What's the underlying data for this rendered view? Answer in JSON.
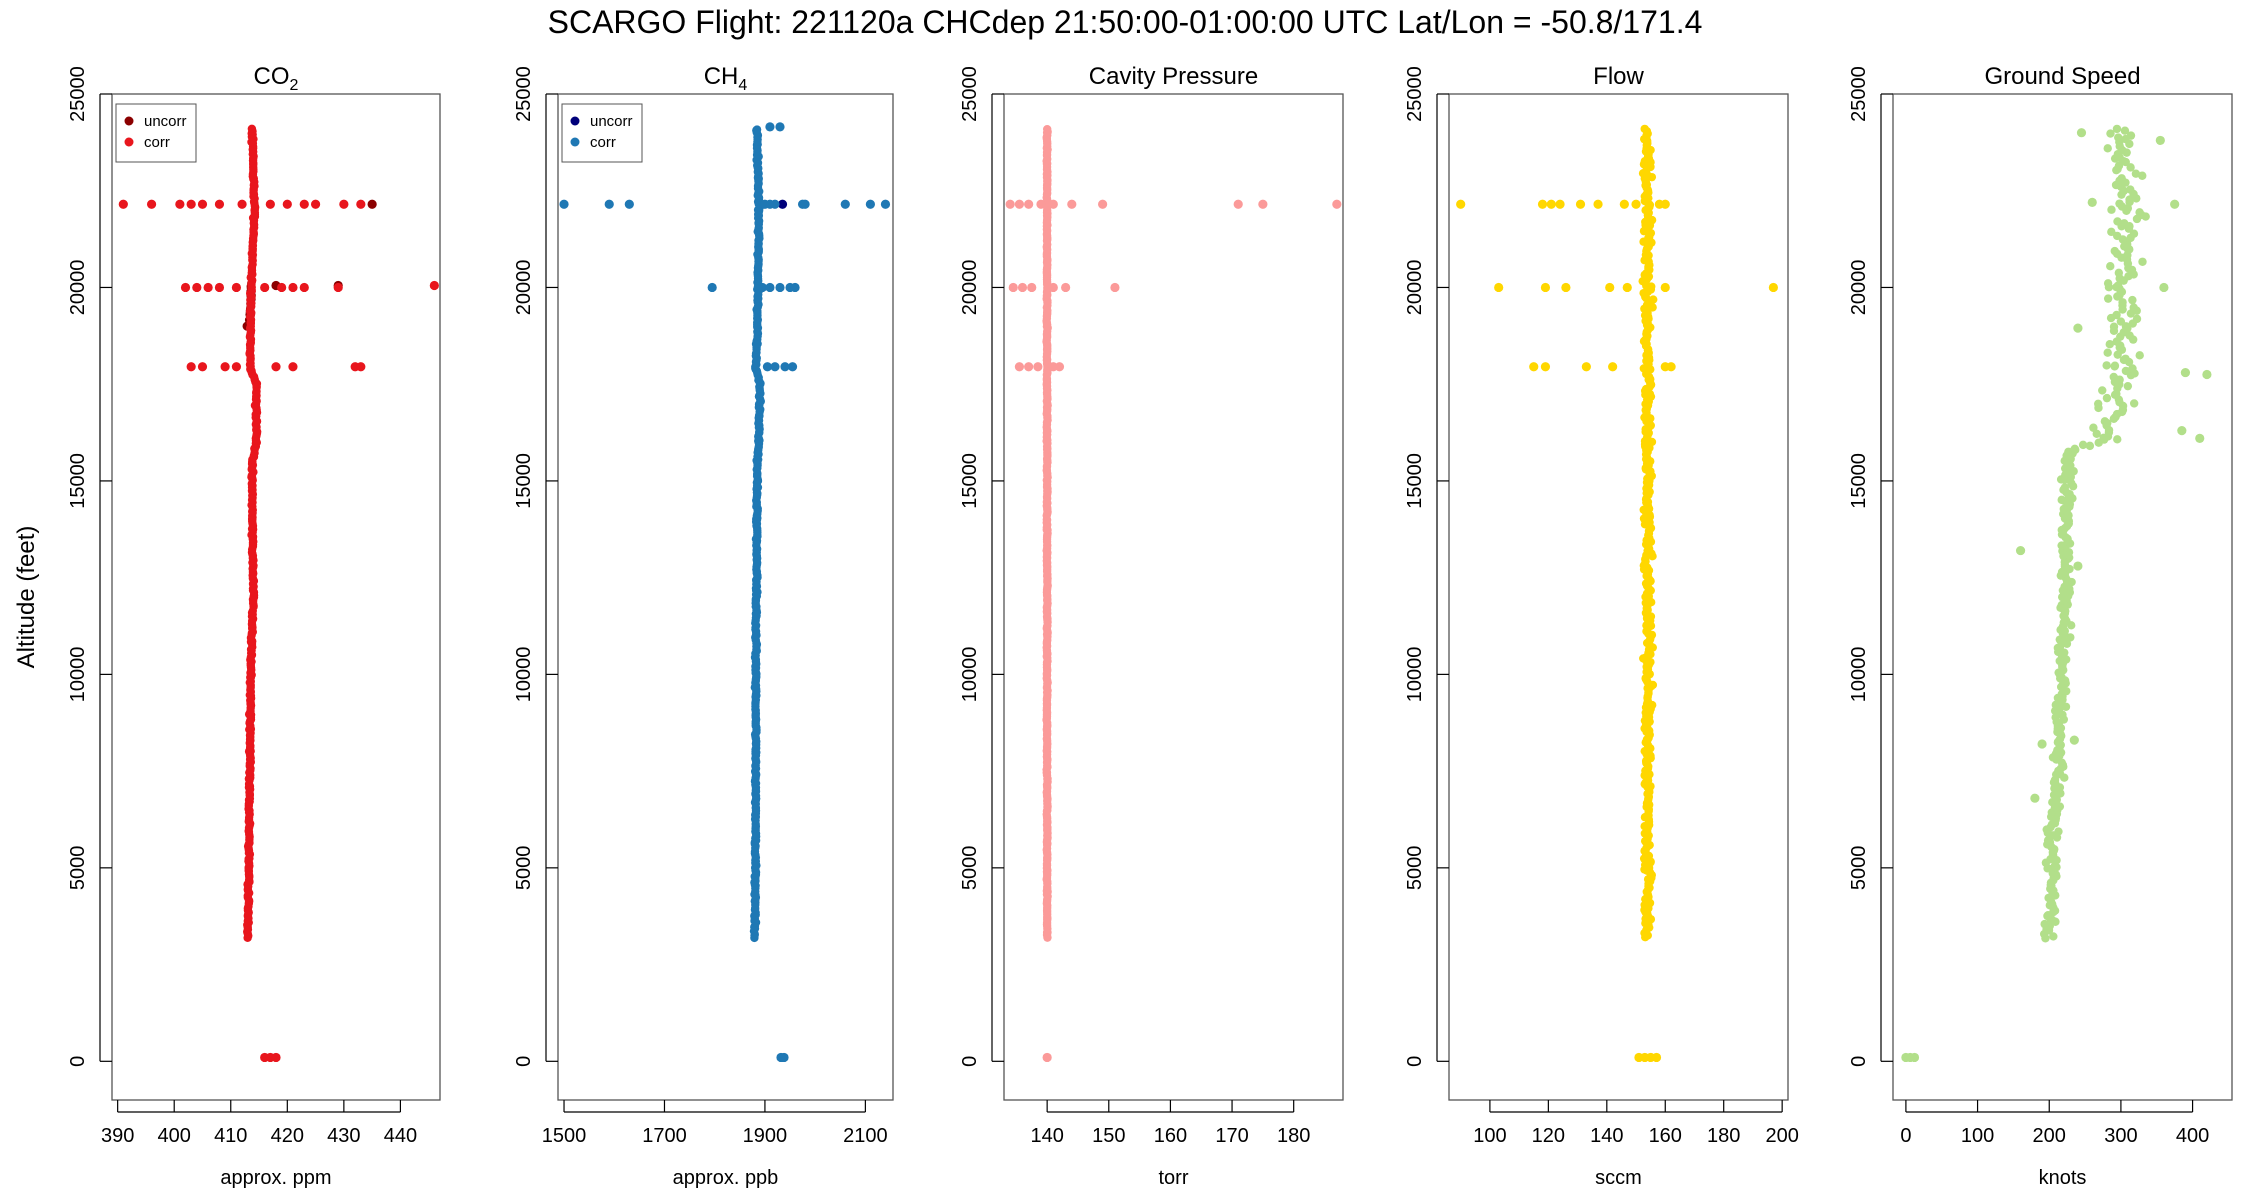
{
  "title": "SCARGO Flight: 221120a  CHCdep  21:50:00-01:00:00 UTC  Lat/Lon = -50.8/171.4",
  "shared_ylabel": "Altitude (feet)",
  "chart_data": [
    {
      "type": "scatter",
      "title": "CO",
      "title_subscript": "2",
      "xlabel": "approx. ppm",
      "ylabel": "Altitude (feet)",
      "xlim": [
        389,
        447
      ],
      "xticks": [
        390,
        400,
        410,
        420,
        430,
        440
      ],
      "ylim": [
        -1000,
        25000
      ],
      "yticks": [
        0,
        5000,
        10000,
        15000,
        20000,
        25000
      ],
      "legend": {
        "position": "top-left",
        "entries": [
          {
            "label": "uncorr",
            "color": "#8b0000"
          },
          {
            "label": "corr",
            "color": "#e8161d"
          }
        ]
      },
      "series": [
        {
          "name": "uncorr",
          "color": "#8b0000",
          "profile": [
            [
              19000,
              413.3
            ],
            [
              19800,
              413.6
            ],
            [
              20100,
              413.6
            ]
          ],
          "points": [
            [
              413.4,
              19300
            ],
            [
              413.6,
              19700
            ],
            [
              412.9,
              19000
            ],
            [
              435,
              22150
            ],
            [
              418,
              20050
            ],
            [
              429,
              20050
            ]
          ]
        },
        {
          "name": "corr",
          "color": "#e8161d",
          "profile": [
            [
              3200,
              413.0
            ],
            [
              5000,
              413.2
            ],
            [
              8000,
              413.4
            ],
            [
              10000,
              413.5
            ],
            [
              12000,
              414.0
            ],
            [
              14000,
              413.8
            ],
            [
              15500,
              413.8
            ],
            [
              16000,
              414.5
            ],
            [
              17500,
              414.5
            ],
            [
              17900,
              413.5
            ],
            [
              18500,
              413.5
            ],
            [
              20000,
              413.6
            ],
            [
              21000,
              413.9
            ],
            [
              22000,
              414.2
            ],
            [
              24100,
              413.8
            ]
          ],
          "points": [
            [
              391,
              22150
            ],
            [
              396,
              22150
            ],
            [
              401,
              22150
            ],
            [
              403,
              22150
            ],
            [
              405,
              22150
            ],
            [
              408,
              22150
            ],
            [
              412,
              22150
            ],
            [
              417,
              22150
            ],
            [
              420,
              22150
            ],
            [
              423,
              22150
            ],
            [
              425,
              22150
            ],
            [
              430,
              22150
            ],
            [
              433,
              22150
            ],
            [
              402,
              20000
            ],
            [
              404,
              20000
            ],
            [
              406,
              20000
            ],
            [
              408,
              20000
            ],
            [
              411,
              20000
            ],
            [
              416,
              20000
            ],
            [
              419,
              20000
            ],
            [
              421,
              20000
            ],
            [
              423,
              20000
            ],
            [
              429,
              20000
            ],
            [
              446,
              20050
            ],
            [
              403,
              17950
            ],
            [
              405,
              17950
            ],
            [
              409,
              17950
            ],
            [
              411,
              17950
            ],
            [
              418,
              17950
            ],
            [
              421,
              17950
            ],
            [
              432,
              17950
            ],
            [
              433,
              17950
            ],
            [
              416,
              100
            ],
            [
              417,
              100
            ],
            [
              418,
              100
            ]
          ]
        }
      ]
    },
    {
      "type": "scatter",
      "title": "CH",
      "title_subscript": "4",
      "xlabel": "approx. ppb",
      "ylabel": "",
      "xlim": [
        1488,
        2155
      ],
      "xticks": [
        1500,
        1700,
        1900,
        2100
      ],
      "ylim": [
        -1000,
        25000
      ],
      "yticks": [
        0,
        5000,
        10000,
        15000,
        20000,
        25000
      ],
      "legend": {
        "position": "top-left",
        "entries": [
          {
            "label": "uncorr",
            "color": "#00007a"
          },
          {
            "label": "corr",
            "color": "#1f78b4"
          }
        ]
      },
      "series": [
        {
          "name": "uncorr",
          "color": "#00007a",
          "profile": [],
          "points": [
            [
              1935,
              22150
            ]
          ]
        },
        {
          "name": "corr",
          "color": "#1f78b4",
          "profile": [
            [
              3200,
              1880
            ],
            [
              5000,
              1881
            ],
            [
              8000,
              1882
            ],
            [
              10000,
              1882
            ],
            [
              12000,
              1883
            ],
            [
              14000,
              1884
            ],
            [
              15500,
              1885
            ],
            [
              16000,
              1888
            ],
            [
              17500,
              1890
            ],
            [
              17900,
              1882
            ],
            [
              18500,
              1884
            ],
            [
              20000,
              1886
            ],
            [
              21000,
              1887
            ],
            [
              22000,
              1888
            ],
            [
              24100,
              1884
            ]
          ],
          "points": [
            [
              1500,
              22150
            ],
            [
              1590,
              22150
            ],
            [
              1630,
              22150
            ],
            [
              1900,
              22150
            ],
            [
              1910,
              22150
            ],
            [
              1920,
              22150
            ],
            [
              1975,
              22150
            ],
            [
              1980,
              22150
            ],
            [
              2060,
              22150
            ],
            [
              2110,
              22150
            ],
            [
              2140,
              22150
            ],
            [
              1795,
              20000
            ],
            [
              1895,
              20000
            ],
            [
              1910,
              20000
            ],
            [
              1930,
              20000
            ],
            [
              1950,
              20000
            ],
            [
              1960,
              20000
            ],
            [
              1905,
              17950
            ],
            [
              1920,
              17950
            ],
            [
              1940,
              17950
            ],
            [
              1955,
              17950
            ],
            [
              1932,
              100
            ],
            [
              1938,
              100
            ],
            [
              1910,
              24150
            ],
            [
              1930,
              24150
            ]
          ]
        }
      ]
    },
    {
      "type": "scatter",
      "title": "Cavity Pressure",
      "xlabel": "torr",
      "ylabel": "",
      "xlim": [
        133,
        188
      ],
      "xticks": [
        140,
        150,
        160,
        170,
        180
      ],
      "ylim": [
        -1000,
        25000
      ],
      "yticks": [
        0,
        5000,
        10000,
        15000,
        20000,
        25000
      ],
      "series": [
        {
          "name": "",
          "color": "#fb9a99",
          "profile": [
            [
              3200,
              140
            ],
            [
              24100,
              140
            ]
          ],
          "points": [
            [
              134,
              22150
            ],
            [
              135.5,
              22150
            ],
            [
              137,
              22150
            ],
            [
              139,
              22150
            ],
            [
              141,
              22150
            ],
            [
              144,
              22150
            ],
            [
              149,
              22150
            ],
            [
              171,
              22150
            ],
            [
              175,
              22150
            ],
            [
              187,
              22150
            ],
            [
              134.5,
              20000
            ],
            [
              136,
              20000
            ],
            [
              137.5,
              20000
            ],
            [
              141,
              20000
            ],
            [
              143,
              20000
            ],
            [
              151,
              20000
            ],
            [
              135.5,
              17950
            ],
            [
              137,
              17950
            ],
            [
              138.5,
              17950
            ],
            [
              141,
              17950
            ],
            [
              142,
              17950
            ],
            [
              140,
              100
            ]
          ]
        }
      ]
    },
    {
      "type": "scatter",
      "title": "Flow",
      "xlabel": "sccm",
      "ylabel": "",
      "xlim": [
        86,
        202
      ],
      "xticks": [
        100,
        120,
        140,
        160,
        180,
        200
      ],
      "ylim": [
        -1000,
        25000
      ],
      "yticks": [
        0,
        5000,
        10000,
        15000,
        20000,
        25000
      ],
      "series": [
        {
          "name": "",
          "color": "#ffd700",
          "profile": [
            [
              3200,
              154
            ],
            [
              8000,
              154
            ],
            [
              12000,
              154
            ],
            [
              16000,
              154
            ],
            [
              20000,
              154
            ],
            [
              24100,
              154
            ]
          ],
          "points": [
            [
              90,
              22150
            ],
            [
              118,
              22150
            ],
            [
              121,
              22150
            ],
            [
              124,
              22150
            ],
            [
              131,
              22150
            ],
            [
              137,
              22150
            ],
            [
              146,
              22150
            ],
            [
              150,
              22150
            ],
            [
              158,
              22150
            ],
            [
              160,
              22150
            ],
            [
              103,
              20000
            ],
            [
              119,
              20000
            ],
            [
              126,
              20000
            ],
            [
              141,
              20000
            ],
            [
              147,
              20000
            ],
            [
              160,
              20000
            ],
            [
              197,
              20000
            ],
            [
              115,
              17950
            ],
            [
              119,
              17950
            ],
            [
              133,
              17950
            ],
            [
              142,
              17950
            ],
            [
              160,
              17950
            ],
            [
              162,
              17950
            ],
            [
              151,
              100
            ],
            [
              153,
              100
            ],
            [
              155,
              100
            ],
            [
              157,
              100
            ]
          ]
        }
      ]
    },
    {
      "type": "scatter",
      "title": "Ground Speed",
      "xlabel": "knots",
      "ylabel": "",
      "xlim": [
        -18,
        455
      ],
      "xticks": [
        0,
        100,
        200,
        300,
        400
      ],
      "ylim": [
        -1000,
        25000
      ],
      "yticks": [
        0,
        5000,
        10000,
        15000,
        20000,
        25000
      ],
      "series": [
        {
          "name": "",
          "color": "#b2df8a",
          "profile": [
            [
              3200,
              198
            ],
            [
              5000,
              205
            ],
            [
              7000,
              210
            ],
            [
              9000,
              215
            ],
            [
              11000,
              220
            ],
            [
              13000,
              222
            ],
            [
              14500,
              225
            ],
            [
              15800,
              230
            ],
            [
              16100,
              280
            ],
            [
              17000,
              290
            ],
            [
              18000,
              300
            ],
            [
              19000,
              305
            ],
            [
              20000,
              300
            ],
            [
              21000,
              310
            ],
            [
              22000,
              305
            ],
            [
              24100,
              300
            ]
          ],
          "points": [
            [
              0,
              100
            ],
            [
              6,
              100
            ],
            [
              12,
              100
            ],
            [
              160,
              13200
            ],
            [
              390,
              17800
            ],
            [
              420,
              17750
            ],
            [
              410,
              16100
            ],
            [
              385,
              16300
            ],
            [
              240,
              18950
            ],
            [
              360,
              20000
            ],
            [
              375,
              22150
            ],
            [
              245,
              24000
            ],
            [
              355,
              23800
            ],
            [
              260,
              22200
            ],
            [
              180,
              6800
            ],
            [
              190,
              8200
            ],
            [
              235,
              8300
            ],
            [
              240,
              12800
            ]
          ]
        }
      ]
    }
  ]
}
